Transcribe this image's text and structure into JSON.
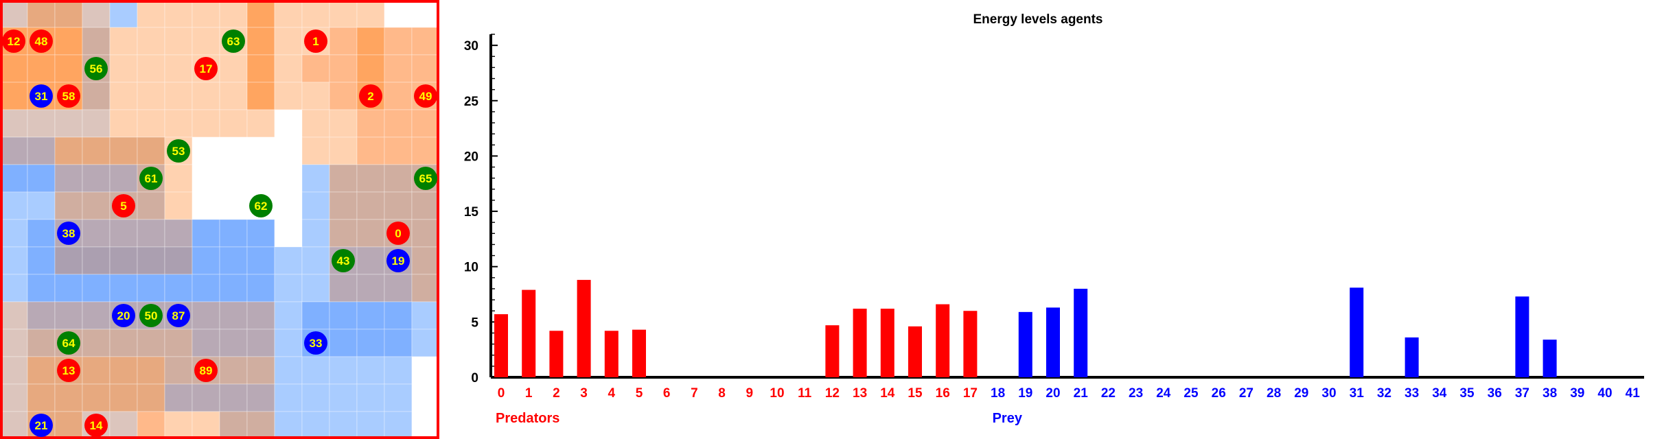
{
  "grid": {
    "size": 16,
    "border_color": "#ff0000",
    "palette": {
      "o1": "#ffd2b0",
      "o2": "#ffb98a",
      "o3": "#ffa560",
      "t1": "#dcc5bd",
      "t2": "#d0aea0",
      "t3": "#e7a97f",
      "m1": "#b8a9b5",
      "m2": "#ab9fb0",
      "b1": "#a9ccff",
      "b2": "#7fb0ff",
      "w": "#ffffff"
    },
    "rows": [
      [
        "t1",
        "t3",
        "t3",
        "t1",
        "b1",
        "o1",
        "o1",
        "o1",
        "o1",
        "o3",
        "o1",
        "o1",
        "o1",
        "o1",
        "w",
        "w"
      ],
      [
        "o3",
        "o3",
        "o3",
        "t2",
        "o1",
        "o1",
        "o1",
        "o1",
        "o1",
        "o3",
        "o1",
        "o1",
        "o2",
        "o3",
        "o2",
        "o2"
      ],
      [
        "o3",
        "o3",
        "o3",
        "t2",
        "o1",
        "o1",
        "o1",
        "o1",
        "o1",
        "o3",
        "o1",
        "o2",
        "o2",
        "o3",
        "o2",
        "o2"
      ],
      [
        "o3",
        "o3",
        "o3",
        "t2",
        "o1",
        "o1",
        "o1",
        "o1",
        "o1",
        "o3",
        "o1",
        "o1",
        "o2",
        "o3",
        "o2",
        "o2"
      ],
      [
        "t1",
        "t1",
        "t1",
        "t1",
        "o1",
        "o1",
        "o1",
        "o1",
        "o1",
        "o1",
        "w",
        "o1",
        "o1",
        "o2",
        "o2",
        "o2"
      ],
      [
        "m1",
        "m1",
        "t3",
        "t3",
        "t3",
        "t3",
        "o1",
        "w",
        "w",
        "w",
        "w",
        "o1",
        "o1",
        "o2",
        "o2",
        "o2"
      ],
      [
        "b2",
        "b2",
        "m1",
        "m1",
        "m1",
        "t2",
        "o1",
        "w",
        "w",
        "w",
        "w",
        "b1",
        "t2",
        "t2",
        "t2",
        "t2"
      ],
      [
        "b1",
        "b1",
        "t2",
        "t2",
        "t2",
        "t2",
        "o1",
        "w",
        "w",
        "w",
        "w",
        "b1",
        "t2",
        "t2",
        "t2",
        "t2"
      ],
      [
        "b1",
        "b2",
        "m1",
        "m1",
        "m1",
        "m1",
        "m1",
        "b2",
        "b2",
        "b2",
        "w",
        "b1",
        "t2",
        "t2",
        "t2",
        "t2"
      ],
      [
        "b1",
        "b2",
        "m2",
        "m2",
        "m2",
        "m2",
        "m2",
        "b2",
        "b2",
        "b2",
        "b1",
        "b1",
        "m1",
        "m1",
        "m1",
        "t2"
      ],
      [
        "b1",
        "b2",
        "b2",
        "b2",
        "b2",
        "b2",
        "b2",
        "b2",
        "b2",
        "b2",
        "b1",
        "b1",
        "m1",
        "m1",
        "m1",
        "t2"
      ],
      [
        "t1",
        "m1",
        "m1",
        "m1",
        "m1",
        "m1",
        "m1",
        "m1",
        "m1",
        "m1",
        "b1",
        "b2",
        "b2",
        "b2",
        "b2",
        "b1"
      ],
      [
        "t1",
        "t2",
        "t2",
        "t2",
        "t2",
        "t2",
        "t2",
        "m1",
        "m1",
        "m1",
        "b1",
        "b2",
        "b2",
        "b2",
        "b2",
        "b1"
      ],
      [
        "t1",
        "t3",
        "t3",
        "t3",
        "t3",
        "t3",
        "t2",
        "t2",
        "t2",
        "t2",
        "b1",
        "b1",
        "b1",
        "b1",
        "b1",
        "w"
      ],
      [
        "t1",
        "t3",
        "t3",
        "t3",
        "t3",
        "t3",
        "m1",
        "m1",
        "m1",
        "m1",
        "b1",
        "b1",
        "b1",
        "b1",
        "b1",
        "w"
      ],
      [
        "t1",
        "t3",
        "t3",
        "t1",
        "t1",
        "o2",
        "o1",
        "o1",
        "t2",
        "t2",
        "b1",
        "b1",
        "b1",
        "b1",
        "b1",
        "w"
      ]
    ],
    "agents": [
      {
        "label": "12",
        "kind": "predator",
        "col": 0,
        "row": 1
      },
      {
        "label": "48",
        "kind": "predator",
        "col": 1,
        "row": 1
      },
      {
        "label": "63",
        "kind": "plant",
        "col": 8,
        "row": 1
      },
      {
        "label": "1",
        "kind": "predator",
        "col": 11,
        "row": 1
      },
      {
        "label": "56",
        "kind": "plant",
        "col": 3,
        "row": 2
      },
      {
        "label": "17",
        "kind": "predator",
        "col": 7,
        "row": 2
      },
      {
        "label": "31",
        "kind": "prey",
        "col": 1,
        "row": 3
      },
      {
        "label": "58",
        "kind": "predator",
        "col": 2,
        "row": 3
      },
      {
        "label": "2",
        "kind": "predator",
        "col": 13,
        "row": 3
      },
      {
        "label": "49",
        "kind": "predator",
        "col": 15,
        "row": 3
      },
      {
        "label": "53",
        "kind": "plant",
        "col": 6,
        "row": 5
      },
      {
        "label": "61",
        "kind": "plant",
        "col": 5,
        "row": 6
      },
      {
        "label": "65",
        "kind": "plant",
        "col": 15,
        "row": 6
      },
      {
        "label": "5",
        "kind": "predator",
        "col": 4,
        "row": 7
      },
      {
        "label": "62",
        "kind": "plant",
        "col": 9,
        "row": 7
      },
      {
        "label": "38",
        "kind": "prey",
        "col": 2,
        "row": 8
      },
      {
        "label": "0",
        "kind": "predator",
        "col": 14,
        "row": 8
      },
      {
        "label": "43",
        "kind": "plant",
        "col": 12,
        "row": 9
      },
      {
        "label": "19",
        "kind": "prey",
        "col": 14,
        "row": 9
      },
      {
        "label": "20",
        "kind": "prey",
        "col": 4,
        "row": 11
      },
      {
        "label": "50",
        "kind": "plant",
        "col": 5,
        "row": 11
      },
      {
        "label": "87",
        "kind": "prey",
        "col": 6,
        "row": 11
      },
      {
        "label": "64",
        "kind": "plant",
        "col": 2,
        "row": 12
      },
      {
        "label": "33",
        "kind": "prey",
        "col": 11,
        "row": 12
      },
      {
        "label": "13",
        "kind": "predator",
        "col": 2,
        "row": 13
      },
      {
        "label": "89",
        "kind": "predator",
        "col": 7,
        "row": 13
      },
      {
        "label": "21",
        "kind": "prey",
        "col": 1,
        "row": 15
      },
      {
        "label": "14",
        "kind": "predator",
        "col": 3,
        "row": 15
      }
    ],
    "agent_colors": {
      "predator": {
        "fill": "#ff0000",
        "text": "#ffff00"
      },
      "prey": {
        "fill": "#0000ff",
        "text": "#ffff00"
      },
      "plant": {
        "fill": "#008000",
        "text": "#ffff00"
      }
    }
  },
  "chart_data": {
    "type": "bar",
    "title": "Energy levels agents",
    "xlabel": "",
    "ylabel": "",
    "ylim": [
      0,
      31
    ],
    "yticks": [
      0,
      5,
      10,
      15,
      20,
      25,
      30
    ],
    "grid": false,
    "categories": [
      "0",
      "1",
      "2",
      "3",
      "4",
      "5",
      "6",
      "7",
      "8",
      "9",
      "10",
      "11",
      "12",
      "13",
      "14",
      "15",
      "16",
      "17",
      "18",
      "19",
      "20",
      "21",
      "22",
      "23",
      "24",
      "25",
      "26",
      "27",
      "28",
      "29",
      "30",
      "31",
      "32",
      "33",
      "34",
      "35",
      "36",
      "37",
      "38",
      "39",
      "40",
      "41"
    ],
    "values": [
      5.7,
      7.9,
      4.2,
      8.8,
      4.2,
      4.3,
      0,
      0,
      0,
      0,
      0,
      0,
      4.7,
      6.2,
      6.2,
      4.6,
      6.6,
      6.0,
      0,
      5.9,
      6.3,
      8.0,
      0,
      0,
      0,
      0,
      0,
      0,
      0,
      0,
      0,
      8.1,
      0,
      3.6,
      0,
      0,
      0,
      7.3,
      3.4,
      0,
      0,
      0
    ],
    "predator_indices": [
      0,
      17
    ],
    "colors": {
      "predators": "#ff0000",
      "prey": "#0000ff",
      "axis": "#000000"
    },
    "groups": [
      {
        "label": "Predators",
        "start": 0,
        "color": "#ff0000"
      },
      {
        "label": "Prey",
        "start": 18,
        "color": "#0000ff"
      }
    ]
  }
}
